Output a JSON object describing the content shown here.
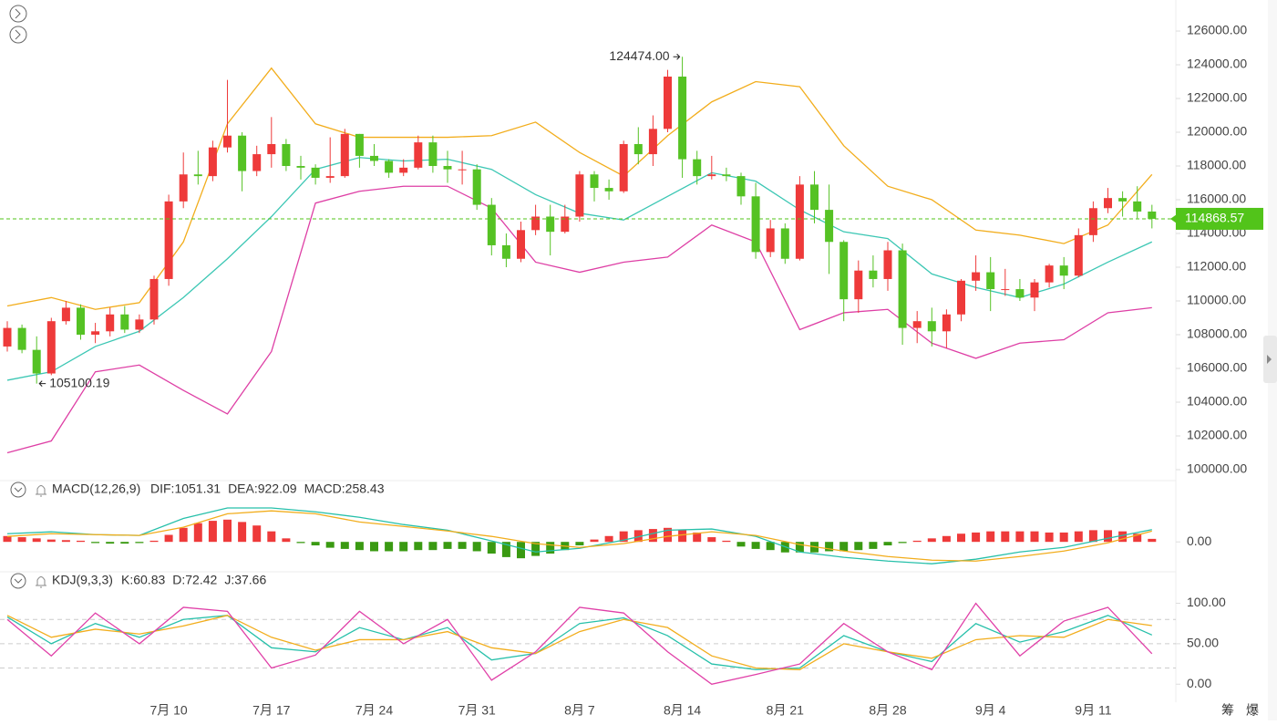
{
  "chart_data": [
    {
      "type": "candlestick",
      "categories": [
        null,
        null,
        null,
        null,
        null,
        null,
        null,
        null,
        null,
        null,
        null,
        "7月 10",
        null,
        null,
        null,
        null,
        null,
        null,
        "7月 17",
        null,
        null,
        null,
        null,
        null,
        null,
        "7月 24",
        null,
        null,
        null,
        null,
        null,
        null,
        "7月 31",
        null,
        null,
        null,
        null,
        null,
        null,
        "8月 7",
        null,
        null,
        null,
        null,
        null,
        null,
        "8月 14",
        null,
        null,
        null,
        null,
        null,
        null,
        "8月 21",
        null,
        null,
        null,
        null,
        null,
        null,
        "8月 28",
        null,
        null,
        null,
        null,
        null,
        null,
        "9月 4",
        null,
        null,
        null,
        null,
        null,
        null,
        "9月 11",
        null,
        null,
        null,
        null
      ],
      "open": [
        107300,
        108400,
        107100,
        105700,
        108800,
        109600,
        108000,
        108200,
        109200,
        108300,
        108900,
        111300,
        115900,
        117500,
        117400,
        119100,
        119800,
        117700,
        118700,
        119300,
        118000,
        117900,
        117300,
        117400,
        119900,
        118600,
        118300,
        117600,
        117900,
        119400,
        118000,
        117800,
        117800,
        115700,
        113300,
        112500,
        114200,
        115000,
        114100,
        115000,
        117500,
        116700,
        116500,
        119300,
        118700,
        120200,
        123300,
        118400,
        117400,
        117500,
        117400,
        116200,
        112900,
        114300,
        112500,
        116900,
        115400,
        113500,
        110100,
        111800,
        111300,
        113000,
        108400,
        108800,
        108200,
        109200,
        111200,
        111700,
        110700,
        110700,
        110200,
        111100,
        112100,
        111500,
        113900,
        115500,
        116100,
        115900,
        115300
      ],
      "high": [
        108800,
        108600,
        107900,
        109000,
        110000,
        109800,
        108700,
        109600,
        109700,
        109200,
        111500,
        116300,
        118800,
        118900,
        119500,
        123100,
        120000,
        119200,
        120900,
        119600,
        118600,
        118100,
        119700,
        120200,
        119900,
        119300,
        118400,
        118400,
        119800,
        119800,
        118900,
        118900,
        118100,
        116100,
        114000,
        114700,
        115700,
        115700,
        115700,
        117700,
        117700,
        117200,
        119500,
        120300,
        121000,
        123700,
        124474,
        118900,
        118600,
        117900,
        117600,
        117000,
        114800,
        114600,
        117400,
        117700,
        116900,
        113600,
        112400,
        112700,
        113500,
        113400,
        109400,
        109600,
        109500,
        111300,
        112700,
        112600,
        111900,
        111300,
        111300,
        112200,
        112600,
        114300,
        115900,
        116700,
        116500,
        116800,
        115700
      ],
      "low": [
        107000,
        106900,
        105100.19,
        105600,
        108600,
        107700,
        107500,
        107900,
        108100,
        108100,
        108600,
        110900,
        115500,
        116900,
        117100,
        118800,
        116500,
        117400,
        117900,
        117700,
        117200,
        116900,
        117000,
        117300,
        117900,
        118000,
        117300,
        117400,
        117800,
        117600,
        117000,
        116900,
        115400,
        112700,
        112000,
        112300,
        113900,
        112700,
        114000,
        114700,
        115900,
        116000,
        116400,
        118100,
        118000,
        120000,
        117300,
        116900,
        117200,
        117100,
        115700,
        112500,
        112600,
        112200,
        112400,
        114600,
        111600,
        108800,
        109300,
        110800,
        110600,
        107400,
        107500,
        107300,
        107200,
        108800,
        110600,
        109400,
        110300,
        110000,
        109400,
        110800,
        110700,
        111400,
        113500,
        115200,
        115000,
        114900,
        114300
      ],
      "close": [
        108400,
        107100,
        105700,
        108800,
        109600,
        108000,
        108200,
        109200,
        108300,
        108900,
        111300,
        115900,
        117500,
        117400,
        119100,
        119800,
        117700,
        118700,
        119300,
        118000,
        117900,
        117300,
        117400,
        119900,
        118600,
        118300,
        117600,
        117900,
        119400,
        118000,
        117800,
        117800,
        115700,
        113300,
        112500,
        114200,
        115000,
        114100,
        115000,
        117500,
        116700,
        116500,
        119300,
        118700,
        120200,
        123300,
        118400,
        117400,
        117500,
        117400,
        116200,
        112900,
        114300,
        112500,
        116900,
        115400,
        113500,
        110100,
        111800,
        111300,
        113000,
        108400,
        108800,
        108200,
        109200,
        111200,
        111700,
        110700,
        110700,
        110200,
        111100,
        112100,
        111500,
        113900,
        115500,
        116100,
        115900,
        115300,
        114868.57
      ],
      "up_color": "#ee3a3a",
      "down_color": "#55c224",
      "last_color": "#52c41a",
      "max_high_label": "124474.00",
      "ylim": [
        99350,
        127840
      ],
      "yticks": [
        {
          "value": 100000,
          "label": "100000.00"
        },
        {
          "value": 102000,
          "label": "102000.00"
        },
        {
          "value": 104000,
          "label": "104000.00"
        },
        {
          "value": 106000,
          "label": "106000.00"
        },
        {
          "value": 108000,
          "label": "108000.00"
        },
        {
          "value": 110000,
          "label": "110000.00"
        },
        {
          "value": 112000,
          "label": "112000.00"
        },
        {
          "value": 114000,
          "label": "114000.00"
        },
        {
          "value": 116000,
          "label": "116000.00"
        },
        {
          "value": 118000,
          "label": "118000.00"
        },
        {
          "value": 120000,
          "label": "120000.00"
        },
        {
          "value": 122000,
          "label": "122000.00"
        },
        {
          "value": 124000,
          "label": "124000.00"
        },
        {
          "value": 126000,
          "label": "126000.00"
        }
      ],
      "bands": {
        "x": [
          0,
          3,
          6,
          9,
          12,
          15,
          18,
          21,
          24,
          27,
          30,
          33,
          36,
          39,
          42,
          45,
          48,
          51,
          54,
          57,
          60,
          63,
          66,
          69,
          72,
          75,
          78
        ],
        "series": [
          {
            "color": "#f2ad1c",
            "values": [
              109700,
              110200,
              109500,
              109900,
              113500,
              120500,
              123800,
              120500,
              119700,
              119700,
              119700,
              119800,
              120600,
              118800,
              117400,
              119800,
              121800,
              123000,
              122700,
              119200,
              116800,
              116000,
              114200,
              113900,
              113400,
              114500,
              117500
            ]
          },
          {
            "color": "#3cc7b4",
            "values": [
              105300,
              105800,
              107300,
              108200,
              110200,
              112500,
              115000,
              117800,
              118500,
              118300,
              118400,
              117800,
              116300,
              115200,
              114800,
              116200,
              117600,
              117100,
              115400,
              114100,
              113700,
              111600,
              110800,
              110200,
              111000,
              112300,
              113500
            ]
          },
          {
            "color": "#de3fa5",
            "values": [
              101000,
              101700,
              105800,
              106200,
              104700,
              103300,
              107000,
              115800,
              116500,
              116800,
              116800,
              115500,
              112300,
              111700,
              112300,
              112600,
              114500,
              113500,
              108300,
              109300,
              109500,
              107500,
              106600,
              107500,
              107700,
              109300,
              109600
            ]
          }
        ]
      }
    },
    {
      "type": "macd",
      "title": "MACD(12,26,9)",
      "ylim": [
        -2400,
        3600
      ],
      "yticks": [
        {
          "value": 0,
          "label": "0.00"
        }
      ],
      "x": [
        0,
        3,
        6,
        9,
        12,
        15,
        18,
        21,
        24,
        27,
        30,
        33,
        36,
        39,
        42,
        45,
        48,
        51,
        54,
        57,
        60,
        63,
        66,
        69,
        72,
        75,
        78
      ],
      "series": [
        {
          "label": "DIF:1051.31",
          "color": "#27c0aa",
          "values": [
            700,
            860,
            620,
            550,
            2000,
            2900,
            2900,
            2570,
            2100,
            1480,
            1000,
            80,
            -860,
            -550,
            150,
            1000,
            1100,
            470,
            -860,
            -1320,
            -1640,
            -1870,
            -1480,
            -860,
            -470,
            310,
            1051.31
          ]
        },
        {
          "label": "DEA:922.09",
          "color": "#f2ad1c",
          "values": [
            470,
            700,
            620,
            550,
            1250,
            2400,
            2650,
            2400,
            1700,
            1320,
            930,
            470,
            -150,
            -470,
            -150,
            470,
            860,
            550,
            -230,
            -780,
            -1250,
            -1560,
            -1640,
            -1250,
            -780,
            -80,
            922.09
          ]
        }
      ],
      "hist": {
        "label": "MACD:258.43",
        "up_color": "#ee3a3a",
        "down_color": "#3a9a12",
        "label_color": "#1db39c",
        "values": [
          500,
          400,
          300,
          200,
          150,
          100,
          -100,
          -150,
          -150,
          -100,
          100,
          600,
          1200,
          1600,
          1800,
          1900,
          1700,
          1400,
          900,
          300,
          -100,
          -300,
          -500,
          -600,
          -700,
          -800,
          -800,
          -800,
          -700,
          -700,
          -600,
          -600,
          -800,
          -1000,
          -1300,
          -1400,
          -1200,
          -1000,
          -700,
          -300,
          200,
          500,
          900,
          1000,
          1100,
          1200,
          1000,
          800,
          400,
          100,
          -400,
          -600,
          -700,
          -900,
          -900,
          -900,
          -800,
          -800,
          -700,
          -600,
          -300,
          -100,
          100,
          300,
          500,
          700,
          800,
          900,
          900,
          900,
          900,
          800,
          800,
          900,
          1000,
          1000,
          900,
          700,
          258.43
        ]
      }
    },
    {
      "type": "kdj",
      "title": "KDJ(9,3,3)",
      "ylim": [
        -20,
        113
      ],
      "yticks": [
        {
          "value": 0,
          "label": "0.00"
        },
        {
          "value": 50,
          "label": "50.00"
        },
        {
          "value": 100,
          "label": "100.00"
        }
      ],
      "levels": [
        20,
        50,
        80
      ],
      "x": [
        0,
        3,
        6,
        9,
        12,
        15,
        18,
        21,
        24,
        27,
        30,
        33,
        36,
        39,
        42,
        45,
        48,
        51,
        54,
        57,
        60,
        63,
        66,
        69,
        72,
        75,
        78
      ],
      "series": [
        {
          "label": "K:60.83",
          "color": "#27c0aa",
          "values": [
            83,
            50,
            75,
            58,
            80,
            85,
            45,
            40,
            70,
            55,
            70,
            30,
            38,
            75,
            82,
            60,
            25,
            18,
            20,
            60,
            40,
            28,
            75,
            52,
            65,
            85,
            60.83
          ]
        },
        {
          "label": "D:72.42",
          "color": "#f2ad1c",
          "values": [
            85,
            58,
            68,
            62,
            72,
            85,
            58,
            42,
            55,
            55,
            65,
            45,
            38,
            65,
            80,
            70,
            35,
            20,
            18,
            50,
            40,
            32,
            55,
            60,
            58,
            80,
            72.42
          ]
        },
        {
          "label": "J:37.66",
          "color": "#e040a8",
          "values": [
            80,
            35,
            88,
            50,
            95,
            90,
            20,
            36,
            90,
            50,
            80,
            5,
            40,
            95,
            88,
            40,
            0,
            12,
            25,
            75,
            40,
            18,
            100,
            35,
            78,
            95,
            37.66
          ]
        }
      ]
    }
  ],
  "corner_buttons": [
    "筹",
    "爆"
  ]
}
